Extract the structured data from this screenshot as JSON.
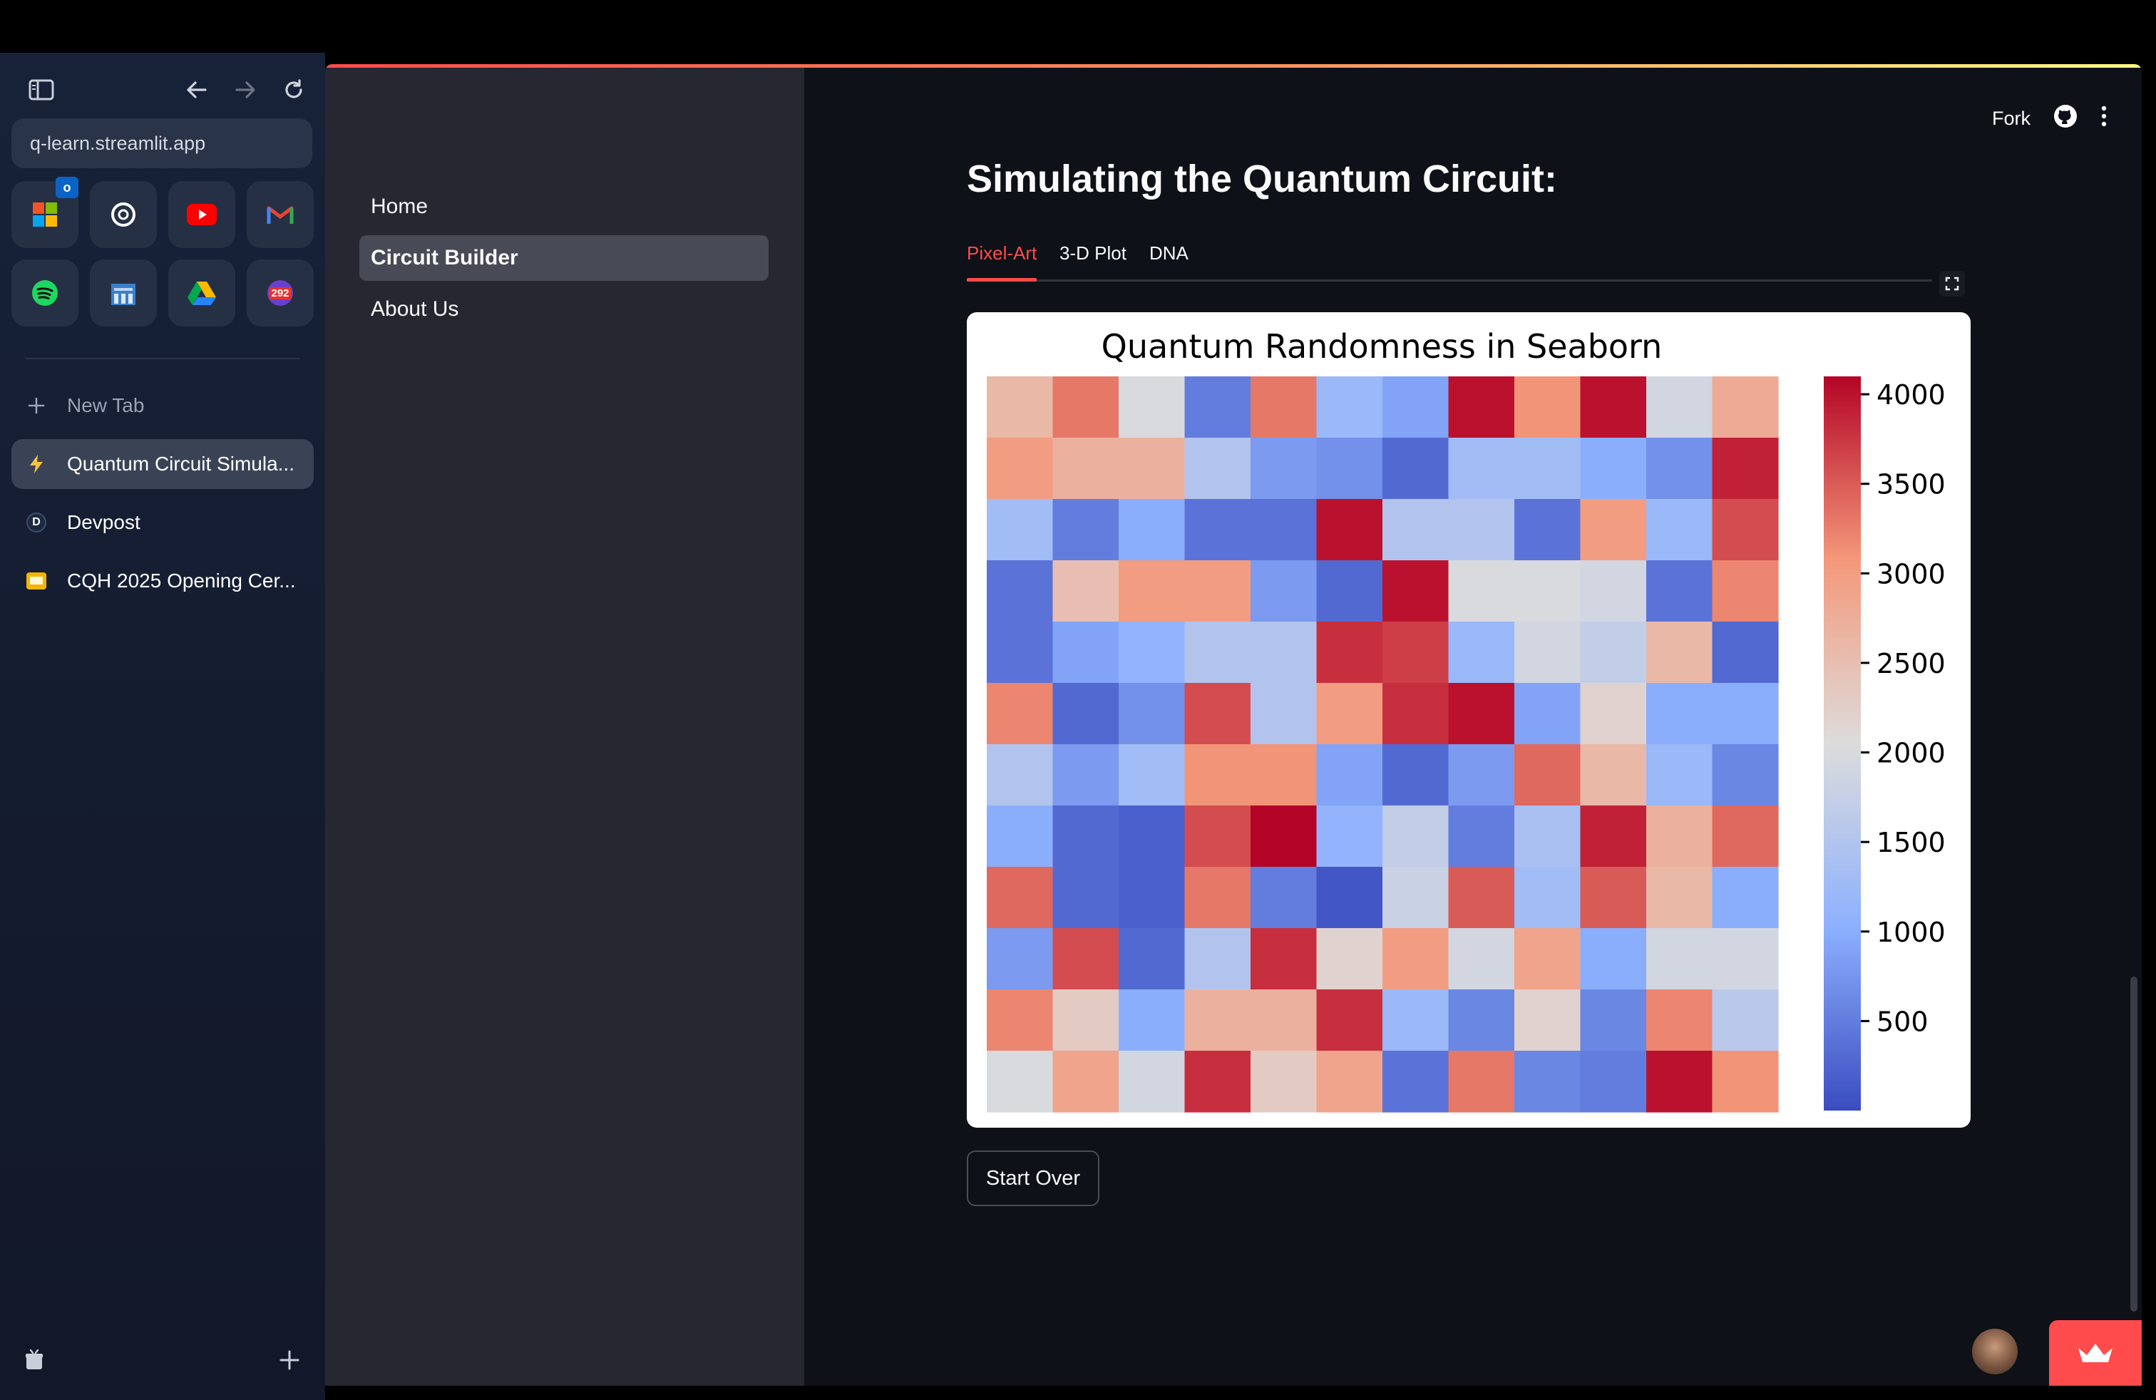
{
  "browser": {
    "url": "q-learn.streamlit.app",
    "favorites": [
      {
        "icon": "microsoft-icon"
      },
      {
        "icon": "openai-icon"
      },
      {
        "icon": "youtube-icon"
      },
      {
        "icon": "gmail-icon"
      },
      {
        "icon": "spotify-icon"
      },
      {
        "icon": "bank-icon"
      },
      {
        "icon": "google-drive-icon"
      },
      {
        "icon": "calendar-icon",
        "badge": "292"
      }
    ],
    "new_tab_label": "New Tab",
    "tabs": [
      {
        "title": "Quantum Circuit Simula...",
        "icon": "streamlit-bolt-icon",
        "active": true
      },
      {
        "title": "Devpost",
        "icon": "devpost-icon",
        "active": false
      },
      {
        "title": "CQH 2025 Opening Cer...",
        "icon": "slides-icon",
        "active": false
      }
    ]
  },
  "app": {
    "nav": {
      "items": [
        "Home",
        "Circuit Builder",
        "About Us"
      ],
      "active": "Circuit Builder"
    },
    "header": {
      "fork_label": "Fork"
    },
    "page_title": "Simulating the Quantum Circuit:",
    "tabs": [
      "Pixel-Art",
      "3-D Plot",
      "DNA"
    ],
    "active_tab": "Pixel-Art",
    "start_over_label": "Start Over",
    "colors": {
      "accent": "#ff4b4b",
      "background": "#0e1117",
      "sidebar": "#262730"
    }
  },
  "chart_data": {
    "type": "heatmap",
    "title": "Quantum Randomness in Seaborn",
    "colormap": "coolwarm",
    "vmin": 0,
    "vmax": 4100,
    "colorbar_ticks": [
      500,
      1000,
      1500,
      2000,
      2500,
      3000,
      3500,
      4000
    ],
    "values": [
      [
        2600,
        3300,
        2000,
        500,
        3300,
        1200,
        900,
        4000,
        3100,
        4000,
        1900,
        2800
      ],
      [
        3000,
        2700,
        2700,
        1500,
        800,
        700,
        300,
        1300,
        1300,
        1000,
        700,
        3900
      ],
      [
        1300,
        500,
        1000,
        400,
        400,
        4000,
        1500,
        1500,
        400,
        3000,
        1200,
        3600
      ],
      [
        400,
        2500,
        3000,
        3000,
        800,
        300,
        4000,
        2000,
        2000,
        1900,
        400,
        3200
      ],
      [
        400,
        900,
        1100,
        1500,
        1500,
        3800,
        3700,
        1200,
        1900,
        1700,
        2600,
        300
      ],
      [
        3200,
        300,
        700,
        3600,
        1500,
        3000,
        3800,
        4000,
        900,
        2200,
        1000,
        1000
      ],
      [
        1500,
        800,
        1300,
        3100,
        3100,
        900,
        300,
        800,
        3400,
        2600,
        1200,
        600
      ],
      [
        1000,
        300,
        200,
        3600,
        4100,
        1100,
        1700,
        500,
        1400,
        3900,
        2700,
        3400
      ],
      [
        3400,
        300,
        200,
        3300,
        500,
        100,
        1800,
        3500,
        1300,
        3500,
        2600,
        1000
      ],
      [
        800,
        3600,
        300,
        1500,
        3800,
        2200,
        3000,
        1900,
        2900,
        1000,
        1900,
        1900
      ],
      [
        3200,
        2300,
        1000,
        2700,
        2700,
        3800,
        1200,
        600,
        2200,
        600,
        3200,
        1600
      ],
      [
        2000,
        2900,
        1900,
        3800,
        2300,
        2900,
        400,
        3300,
        600,
        500,
        4000,
        3100
      ]
    ]
  }
}
